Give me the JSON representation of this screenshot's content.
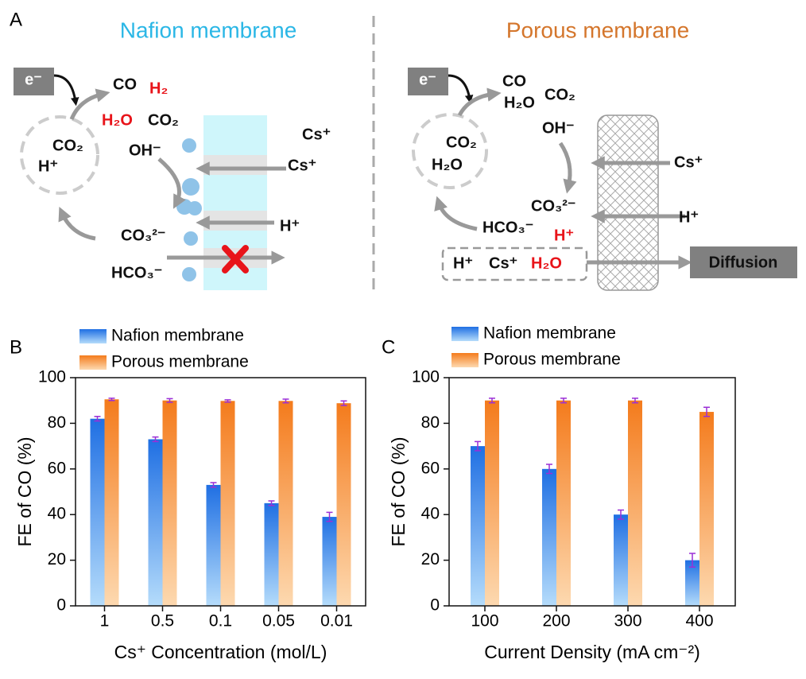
{
  "panel_labels": [
    "A",
    "B",
    "C"
  ],
  "diagram": {
    "left": {
      "title": "Nafion membrane",
      "electron": "e⁻",
      "labels": [
        "CO",
        "H₂",
        "H₂O",
        "CO₂",
        "CO₂",
        "H⁺",
        "OH⁻",
        "Cs⁺",
        "Cs⁺",
        "H⁺",
        "CO₃²⁻",
        "HCO₃⁻"
      ]
    },
    "right": {
      "title": "Porous membrane",
      "electron": "e⁻",
      "labels": [
        "CO",
        "H₂O",
        "CO₂",
        "OH⁻",
        "CO₂",
        "H₂O",
        "Cs⁺",
        "CO₃²⁻",
        "HCO₃⁻",
        "H⁺",
        "H⁺",
        "H⁺",
        "Cs⁺",
        "H₂O"
      ],
      "diffusion": "Diffusion"
    }
  },
  "chart_data": [
    {
      "type": "bar",
      "x_label": "Cs⁺ Concentration (mol/L)",
      "y_label": "FE of CO (%)",
      "categories": [
        "1",
        "0.5",
        "0.1",
        "0.05",
        "0.01"
      ],
      "series": [
        {
          "name": "Nafion membrane",
          "color": [
            "#1f6fe3",
            "#b5dcfb"
          ],
          "values": [
            82,
            73,
            53,
            45,
            39
          ],
          "errors": [
            1,
            1,
            1,
            1,
            2
          ]
        },
        {
          "name": "Porous membrane",
          "color": [
            "#f47b1c",
            "#fdd9b0"
          ],
          "values": [
            90.5,
            90,
            89.8,
            89.8,
            88.8
          ],
          "errors": [
            0.5,
            0.8,
            0.5,
            0.8,
            1
          ]
        }
      ],
      "error_color": "#9b2fd6",
      "ylim": [
        0,
        100
      ],
      "yticks": [
        0,
        20,
        40,
        60,
        80,
        100
      ],
      "legend": "top"
    },
    {
      "type": "bar",
      "x_label": "Current Density (mA cm⁻²)",
      "y_label": "FE of CO (%)",
      "categories": [
        "100",
        "200",
        "300",
        "400"
      ],
      "series": [
        {
          "name": "Nafion membrane",
          "color": [
            "#1f6fe3",
            "#b5dcfb"
          ],
          "values": [
            70,
            60,
            40,
            20
          ],
          "errors": [
            2,
            2,
            2,
            3
          ]
        },
        {
          "name": "Porous membrane",
          "color": [
            "#f47b1c",
            "#fdd9b0"
          ],
          "values": [
            90,
            90,
            90,
            85
          ],
          "errors": [
            1,
            1,
            1,
            2
          ]
        }
      ],
      "error_color": "#9b2fd6",
      "ylim": [
        0,
        100
      ],
      "yticks": [
        0,
        20,
        40,
        60,
        80,
        100
      ],
      "legend": "top"
    }
  ]
}
